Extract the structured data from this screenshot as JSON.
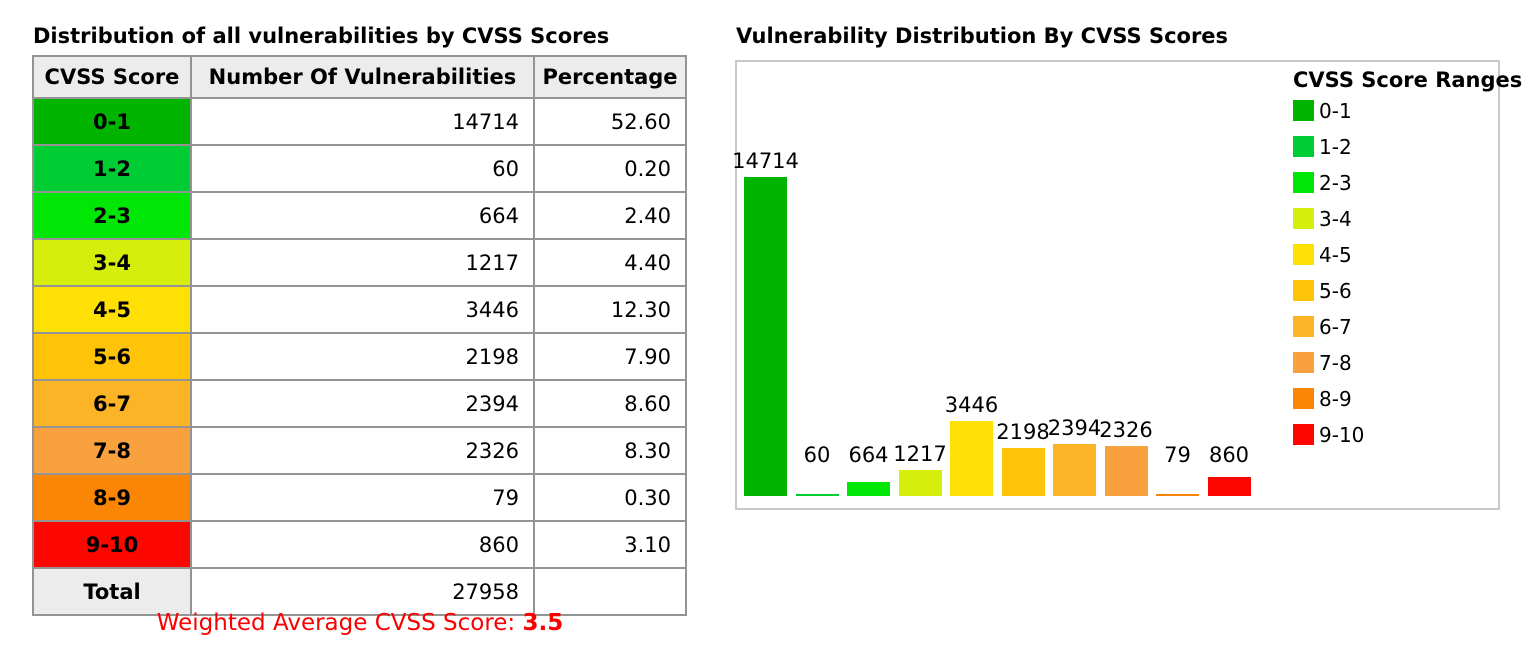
{
  "left": {
    "title": "Distribution of all vulnerabilities by CVSS Scores",
    "table": {
      "columns": [
        "CVSS Score",
        "Number Of Vulnerabilities",
        "Percentage"
      ],
      "rows": [
        {
          "range": "0-1",
          "count": "14714",
          "pct": "52.60",
          "color": "#00B400"
        },
        {
          "range": "1-2",
          "count": "60",
          "pct": "0.20",
          "color": "#00CC33"
        },
        {
          "range": "2-3",
          "count": "664",
          "pct": "2.40",
          "color": "#00E605"
        },
        {
          "range": "3-4",
          "count": "1217",
          "pct": "4.40",
          "color": "#D6EE0C"
        },
        {
          "range": "4-5",
          "count": "3446",
          "pct": "12.30",
          "color": "#FFE005"
        },
        {
          "range": "5-6",
          "count": "2198",
          "pct": "7.90",
          "color": "#FFC40A"
        },
        {
          "range": "6-7",
          "count": "2394",
          "pct": "8.60",
          "color": "#FBB426"
        },
        {
          "range": "7-8",
          "count": "2326",
          "pct": "8.30",
          "color": "#F9A03F"
        },
        {
          "range": "8-9",
          "count": "79",
          "pct": "0.30",
          "color": "#FB8605"
        },
        {
          "range": "9-10",
          "count": "860",
          "pct": "3.10",
          "color": "#FB0700"
        }
      ],
      "total_label": "Total",
      "total_count": "27958",
      "total_pct": ""
    },
    "footer_label": "Weighted Average CVSS Score: ",
    "footer_value": "3.5",
    "footer_color": "#FC0000"
  },
  "right": {
    "title": "Vulnerability Distribution By CVSS Scores"
  },
  "chart_data": {
    "type": "bar",
    "title": "Vulnerability Distribution By CVSS Scores",
    "categories": [
      "0-1",
      "1-2",
      "2-3",
      "3-4",
      "4-5",
      "5-6",
      "6-7",
      "7-8",
      "8-9",
      "9-10"
    ],
    "values": [
      14714,
      60,
      664,
      1217,
      3446,
      2198,
      2394,
      2326,
      79,
      860
    ],
    "colors": [
      "#00B400",
      "#00CC33",
      "#00E605",
      "#D6EE0C",
      "#FFE005",
      "#FFC40A",
      "#FBB426",
      "#F9A03F",
      "#FB8605",
      "#FB0700"
    ],
    "data_labels": [
      "14714",
      "60",
      "664",
      "1217",
      "3446",
      "2198",
      "2394",
      "2326",
      "79",
      "860"
    ],
    "legend_title": "CVSS Score Ranges",
    "legend_position": "right",
    "xlabel": "",
    "ylabel": "",
    "ylim": [
      0,
      15000
    ],
    "grid": false
  }
}
